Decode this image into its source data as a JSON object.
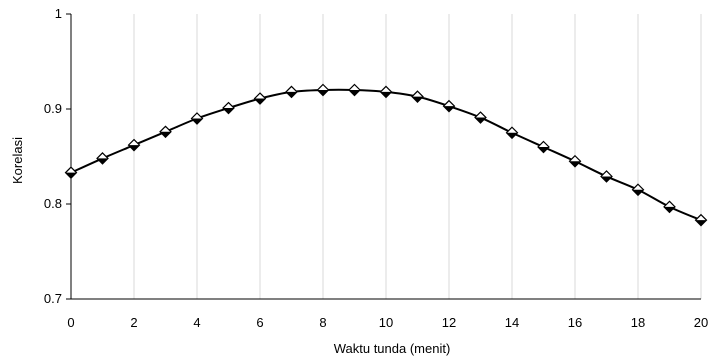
{
  "chart_data": {
    "type": "line",
    "title": "",
    "xlabel": "Waktu tunda (menit)",
    "ylabel": "Korelasi",
    "xlim": [
      0,
      20
    ],
    "ylim": [
      0.7,
      1.0
    ],
    "x_ticks": [
      0,
      2,
      4,
      6,
      8,
      10,
      12,
      14,
      16,
      18,
      20
    ],
    "y_ticks": [
      0.7,
      0.8,
      0.9,
      1.0
    ],
    "y_tick_labels": [
      "0.7",
      "0.8",
      "0.9",
      "1"
    ],
    "grid": "vertical",
    "legend": "none",
    "marker": "diamond",
    "colors": {
      "line": "#000000",
      "marker": "#000000",
      "grid": "#d9d9d9",
      "axis": "#000000"
    },
    "series": [
      {
        "x": [
          0,
          1,
          2,
          3,
          4,
          5,
          6,
          7,
          8,
          9,
          10,
          11,
          12,
          13,
          14,
          15,
          16,
          17,
          18,
          19,
          20
        ],
        "values": [
          0.833,
          0.848,
          0.862,
          0.876,
          0.89,
          0.901,
          0.911,
          0.918,
          0.92,
          0.92,
          0.918,
          0.913,
          0.903,
          0.891,
          0.875,
          0.86,
          0.845,
          0.829,
          0.815,
          0.797,
          0.783
        ]
      }
    ]
  }
}
